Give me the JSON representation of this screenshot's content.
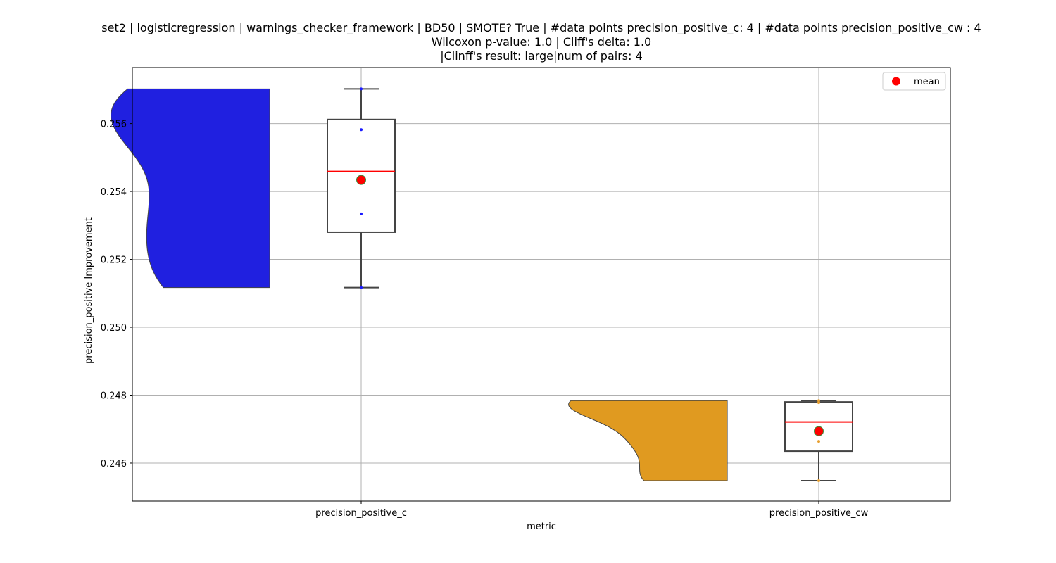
{
  "chart_data": {
    "type": "violin-box",
    "title_lines": [
      "set2 | logisticregression | warnings_checker_framework | BD50 | SMOTE? True | #data points precision_positive_c: 4 | #data points precision_positive_cw : 4",
      "Wilcoxon p-value: 1.0 | Cliff's delta: 1.0",
      "|Clinff's result: large|num of pairs: 4"
    ],
    "xlabel": "metric",
    "ylabel": "precision_positive Improvement",
    "ylim": [
      0.24488,
      0.25765
    ],
    "yticks": [
      0.246,
      0.248,
      0.25,
      0.252,
      0.254,
      0.256
    ],
    "ytick_labels": [
      "0.246",
      "0.248",
      "0.250",
      "0.252",
      "0.254",
      "0.256"
    ],
    "categories": [
      "precision_positive_c",
      "precision_positive_cw"
    ],
    "grid": true,
    "legend": {
      "position": "top-right",
      "entries": [
        {
          "label": "mean",
          "color": "#ff0000"
        }
      ]
    },
    "series": [
      {
        "category": "precision_positive_c",
        "violin_color": "#2020e0",
        "points": [
          0.25117,
          0.25334,
          0.25582,
          0.25702
        ],
        "box": {
          "q1": 0.2528,
          "median": 0.25459,
          "q3": 0.25612,
          "whisker_low": 0.25117,
          "whisker_high": 0.25702
        },
        "mean": 0.25434
      },
      {
        "category": "precision_positive_cw",
        "violin_color": "#e09a20",
        "points": [
          0.24548,
          0.24664,
          0.24778,
          0.24784
        ],
        "box": {
          "q1": 0.24635,
          "median": 0.24721,
          "q3": 0.2478,
          "whisker_low": 0.24548,
          "whisker_high": 0.24784
        },
        "mean": 0.24694
      }
    ]
  }
}
